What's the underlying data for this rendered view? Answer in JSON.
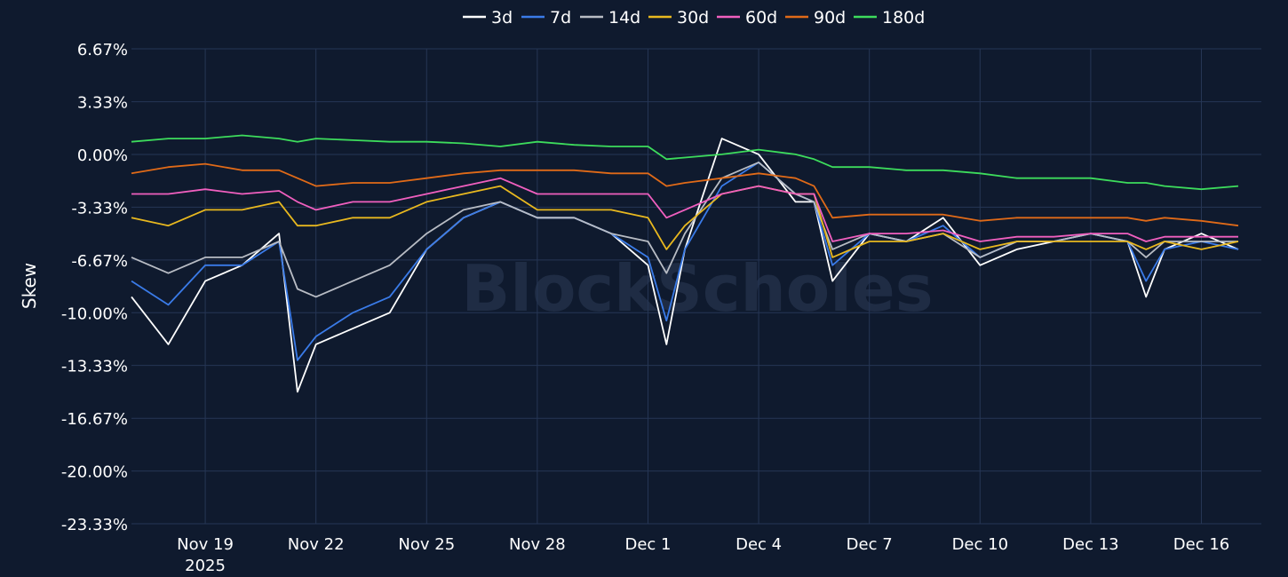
{
  "chart_data": {
    "type": "line",
    "ylabel": "Skew",
    "watermark": "BlockScholes",
    "ylim": [
      -23.33,
      6.67
    ],
    "yticks": [
      6.67,
      3.33,
      0.0,
      -3.33,
      -6.67,
      -10.0,
      -13.33,
      -16.67,
      -20.0,
      -23.33
    ],
    "ytick_labels": [
      "6.67%",
      "3.33%",
      "0.00%",
      "-3.33%",
      "-6.67%",
      "-10.00%",
      "-13.33%",
      "-16.67%",
      "-20.00%",
      "-23.33%"
    ],
    "xlim": [
      "2025-11-17",
      "2025-12-17T15:00"
    ],
    "xticks": [
      "2025-11-19",
      "2025-11-22",
      "2025-11-25",
      "2025-11-28",
      "2025-12-01",
      "2025-12-04",
      "2025-12-07",
      "2025-12-10",
      "2025-12-13",
      "2025-12-16"
    ],
    "xtick_labels": [
      "Nov 19",
      "Nov 22",
      "Nov 25",
      "Nov 28",
      "Dec 1",
      "Dec 4",
      "Dec 7",
      "Dec 10",
      "Dec 13",
      "Dec 16"
    ],
    "xtick_sublabel": "2025",
    "legend_position": "top-center",
    "grid": true,
    "colors": {
      "background": "#0f1a2e",
      "grid": "#263655",
      "text": "#ffffff"
    },
    "x": [
      "2025-11-17",
      "2025-11-18",
      "2025-11-19",
      "2025-11-20",
      "2025-11-21",
      "2025-11-21T12:00",
      "2025-11-22",
      "2025-11-23",
      "2025-11-24",
      "2025-11-25",
      "2025-11-26",
      "2025-11-27",
      "2025-11-28",
      "2025-11-29",
      "2025-11-30",
      "2025-12-01",
      "2025-12-01T12:00",
      "2025-12-02",
      "2025-12-03",
      "2025-12-04",
      "2025-12-05",
      "2025-12-05T12:00",
      "2025-12-06",
      "2025-12-07",
      "2025-12-08",
      "2025-12-09",
      "2025-12-10",
      "2025-12-11",
      "2025-12-12",
      "2025-12-13",
      "2025-12-14",
      "2025-12-14T12:00",
      "2025-12-15",
      "2025-12-16",
      "2025-12-17"
    ],
    "series": [
      {
        "name": "3d",
        "color": "#ffffff",
        "values": [
          -9.0,
          -12.0,
          -8.0,
          -7.0,
          -5.0,
          -15.0,
          -12.0,
          -11.0,
          -10.0,
          -6.0,
          -4.0,
          -3.0,
          -4.0,
          -4.0,
          -5.0,
          -7.0,
          -12.0,
          -6.0,
          1.0,
          0.0,
          -3.0,
          -3.0,
          -8.0,
          -5.0,
          -5.5,
          -4.0,
          -7.0,
          -6.0,
          -5.5,
          -5.0,
          -5.5,
          -9.0,
          -6.0,
          -5.0,
          -6.0
        ]
      },
      {
        "name": "7d",
        "color": "#3a7be8",
        "values": [
          -8.0,
          -9.5,
          -7.0,
          -7.0,
          -5.5,
          -13.0,
          -11.5,
          -10.0,
          -9.0,
          -6.0,
          -4.0,
          -3.0,
          -4.0,
          -4.0,
          -5.0,
          -6.5,
          -10.5,
          -6.0,
          -2.0,
          -0.5,
          -2.5,
          -3.0,
          -7.0,
          -5.0,
          -5.5,
          -4.5,
          -6.5,
          -5.5,
          -5.5,
          -5.0,
          -5.5,
          -8.0,
          -6.0,
          -5.5,
          -6.0
        ]
      },
      {
        "name": "14d",
        "color": "#b8bcc4",
        "values": [
          -6.5,
          -7.5,
          -6.5,
          -6.5,
          -5.5,
          -8.5,
          -9.0,
          -8.0,
          -7.0,
          -5.0,
          -3.5,
          -3.0,
          -4.0,
          -4.0,
          -5.0,
          -5.5,
          -7.5,
          -5.0,
          -1.5,
          -0.5,
          -2.5,
          -3.0,
          -6.0,
          -5.0,
          -5.5,
          -5.0,
          -6.5,
          -5.5,
          -5.5,
          -5.0,
          -5.5,
          -6.5,
          -5.5,
          -5.5,
          -5.5
        ]
      },
      {
        "name": "30d",
        "color": "#e8b81f",
        "values": [
          -4.0,
          -4.5,
          -3.5,
          -3.5,
          -3.0,
          -4.5,
          -4.5,
          -4.0,
          -4.0,
          -3.0,
          -2.5,
          -2.0,
          -3.5,
          -3.5,
          -3.5,
          -4.0,
          -6.0,
          -4.5,
          -2.5,
          -2.0,
          -2.5,
          -2.5,
          -6.5,
          -5.5,
          -5.5,
          -5.0,
          -6.0,
          -5.5,
          -5.5,
          -5.5,
          -5.5,
          -6.0,
          -5.5,
          -6.0,
          -5.5
        ]
      },
      {
        "name": "60d",
        "color": "#f05fbf",
        "values": [
          -2.5,
          -2.5,
          -2.2,
          -2.5,
          -2.3,
          -3.0,
          -3.5,
          -3.0,
          -3.0,
          -2.5,
          -2.0,
          -1.5,
          -2.5,
          -2.5,
          -2.5,
          -2.5,
          -4.0,
          -3.5,
          -2.5,
          -2.0,
          -2.5,
          -2.5,
          -5.5,
          -5.0,
          -5.0,
          -4.8,
          -5.5,
          -5.2,
          -5.2,
          -5.0,
          -5.0,
          -5.5,
          -5.2,
          -5.2,
          -5.2
        ]
      },
      {
        "name": "90d",
        "color": "#e06a18",
        "values": [
          -1.2,
          -0.8,
          -0.6,
          -1.0,
          -1.0,
          -1.5,
          -2.0,
          -1.8,
          -1.8,
          -1.5,
          -1.2,
          -1.0,
          -1.0,
          -1.0,
          -1.2,
          -1.2,
          -2.0,
          -1.8,
          -1.5,
          -1.2,
          -1.5,
          -2.0,
          -4.0,
          -3.8,
          -3.8,
          -3.8,
          -4.2,
          -4.0,
          -4.0,
          -4.0,
          -4.0,
          -4.2,
          -4.0,
          -4.2,
          -4.5
        ]
      },
      {
        "name": "180d",
        "color": "#3ddc5c",
        "values": [
          0.8,
          1.0,
          1.0,
          1.2,
          1.0,
          0.8,
          1.0,
          0.9,
          0.8,
          0.8,
          0.7,
          0.5,
          0.8,
          0.6,
          0.5,
          0.5,
          -0.3,
          -0.2,
          0.0,
          0.3,
          0.0,
          -0.3,
          -0.8,
          -0.8,
          -1.0,
          -1.0,
          -1.2,
          -1.5,
          -1.5,
          -1.5,
          -1.8,
          -1.8,
          -2.0,
          -2.2,
          -2.0
        ]
      }
    ]
  }
}
